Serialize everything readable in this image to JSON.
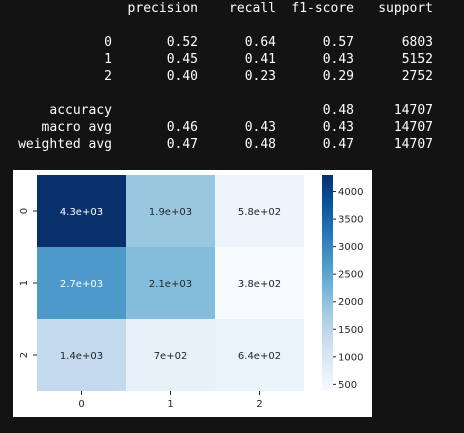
{
  "report": {
    "headers": [
      "precision",
      "recall",
      "f1-score",
      "support"
    ],
    "rows": [
      {
        "label": "0",
        "precision": "0.52",
        "recall": "0.64",
        "f1": "0.57",
        "support": "6803"
      },
      {
        "label": "1",
        "precision": "0.45",
        "recall": "0.41",
        "f1": "0.43",
        "support": "5152"
      },
      {
        "label": "2",
        "precision": "0.40",
        "recall": "0.23",
        "f1": "0.29",
        "support": "2752"
      }
    ],
    "accuracy": {
      "label": "accuracy",
      "f1": "0.48",
      "support": "14707"
    },
    "macro": {
      "label": "macro avg",
      "precision": "0.46",
      "recall": "0.43",
      "f1": "0.43",
      "support": "14707"
    },
    "weighted": {
      "label": "weighted avg",
      "precision": "0.47",
      "recall": "0.48",
      "f1": "0.47",
      "support": "14707"
    }
  },
  "chart_data": {
    "type": "heatmap",
    "x_categories": [
      "0",
      "1",
      "2"
    ],
    "y_categories": [
      "0",
      "1",
      "2"
    ],
    "values": [
      [
        4300,
        1900,
        580
      ],
      [
        2700,
        2100,
        380
      ],
      [
        1400,
        700,
        640
      ]
    ],
    "annotations": [
      [
        "4.3e+03",
        "1.9e+03",
        "5.8e+02"
      ],
      [
        "2.7e+03",
        "2.1e+03",
        "3.8e+02"
      ],
      [
        "1.4e+03",
        "7e+02",
        "6.4e+02"
      ]
    ],
    "colormap": "Blues",
    "colorbar": {
      "min": 380,
      "max": 4300,
      "ticks": [
        500,
        1000,
        1500,
        2000,
        2500,
        3000,
        3500,
        4000
      ],
      "tick_labels": [
        "500",
        "1000",
        "1500",
        "2000",
        "2500",
        "3000",
        "3500",
        "4000"
      ]
    }
  },
  "colors": {
    "background": "#131313",
    "text": "#ffffff",
    "panel": "#ffffff"
  }
}
